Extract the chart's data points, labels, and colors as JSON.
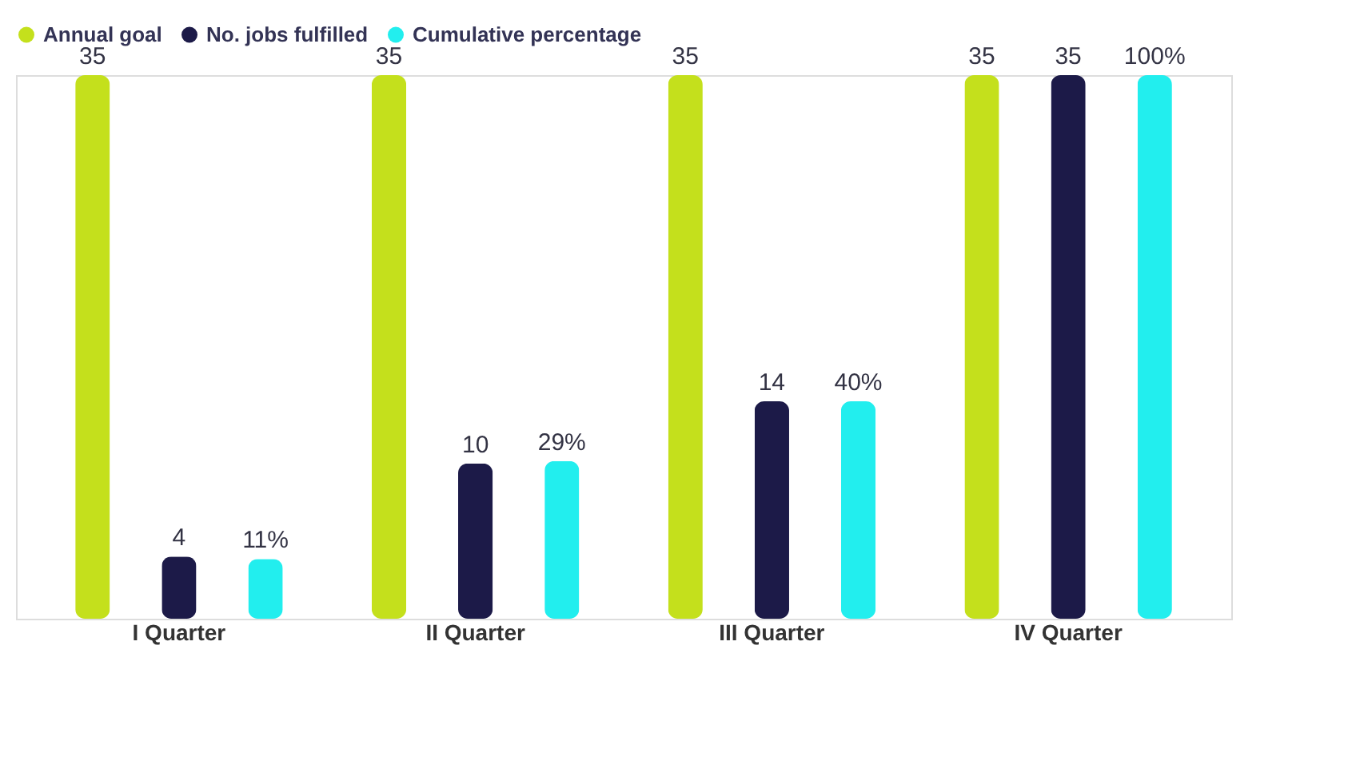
{
  "chart_data": {
    "type": "bar",
    "categories": [
      "I Quarter",
      "II Quarter",
      "III Quarter",
      "IV Quarter"
    ],
    "series": [
      {
        "name": "Annual goal",
        "color": "#c4e01c",
        "values": [
          35,
          35,
          35,
          35
        ]
      },
      {
        "name": "No. jobs fulfilled",
        "color": "#1c1a48",
        "values": [
          4,
          10,
          14,
          35
        ]
      },
      {
        "name": "Cumulative percentage",
        "color": "#22eeee",
        "values": [
          11,
          29,
          40,
          100
        ],
        "axis": "y2",
        "value_labels": [
          "11%",
          "29%",
          "40%",
          "100%"
        ]
      }
    ],
    "tick_labels": "x",
    "data_labels": true,
    "legend": "top"
  }
}
